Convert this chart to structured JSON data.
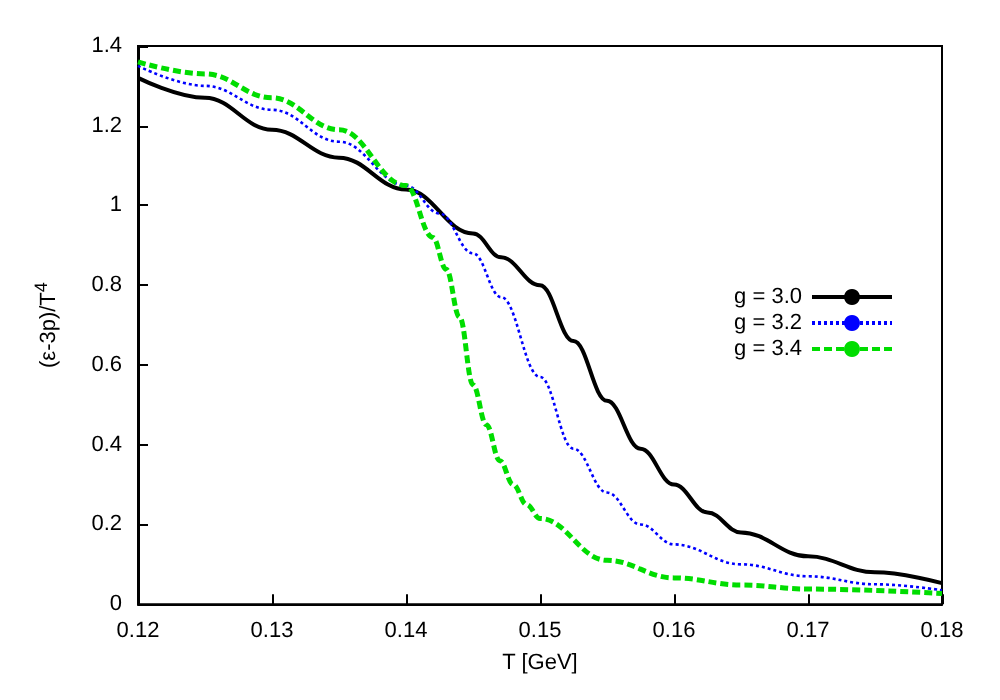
{
  "chart_data": {
    "type": "line",
    "xlabel": "T [GeV]",
    "ylabel": "(ε-3p)/T$^{4}$",
    "xlim": [
      0.12,
      0.18
    ],
    "xticks": [
      0.12,
      0.13,
      0.14,
      0.15,
      0.16,
      0.17,
      0.18
    ],
    "ylim": [
      0,
      1.4
    ],
    "yticks": [
      0,
      0.2,
      0.4,
      0.6,
      0.8,
      1,
      1.2,
      1.4
    ],
    "grid": false,
    "legend": "right",
    "marker": "none",
    "series": [
      {
        "name": "g = 3.0",
        "color": "#000000",
        "line_style": "solid",
        "x": [
          0.12,
          0.125,
          0.13,
          0.135,
          0.14,
          0.145,
          0.1471,
          0.15,
          0.1525,
          0.155,
          0.1575,
          0.16,
          0.1625,
          0.165,
          0.17,
          0.175,
          0.18
        ],
        "values": [
          1.32,
          1.27,
          1.19,
          1.12,
          1.04,
          0.93,
          0.87,
          0.8,
          0.66,
          0.51,
          0.39,
          0.3,
          0.23,
          0.18,
          0.12,
          0.08,
          0.053
        ]
      },
      {
        "name": "g = 3.2",
        "color": "#0000ff",
        "line_style": "dotted",
        "x": [
          0.12,
          0.125,
          0.13,
          0.135,
          0.14,
          0.1425,
          0.145,
          0.1471,
          0.15,
          0.1525,
          0.155,
          0.1575,
          0.16,
          0.165,
          0.17,
          0.175,
          0.18
        ],
        "values": [
          1.35,
          1.3,
          1.24,
          1.16,
          1.05,
          0.98,
          0.88,
          0.77,
          0.57,
          0.39,
          0.28,
          0.2,
          0.15,
          0.1,
          0.07,
          0.05,
          0.035
        ]
      },
      {
        "name": "g = 3.4",
        "color": "#00dd00",
        "line_style": "dashed",
        "x": [
          0.12,
          0.125,
          0.13,
          0.135,
          0.14,
          0.142,
          0.143,
          0.144,
          0.145,
          0.146,
          0.147,
          0.148,
          0.149,
          0.15,
          0.155,
          0.16,
          0.165,
          0.17,
          0.18
        ],
        "values": [
          1.36,
          1.33,
          1.27,
          1.19,
          1.05,
          0.92,
          0.84,
          0.72,
          0.55,
          0.45,
          0.36,
          0.3,
          0.25,
          0.215,
          0.11,
          0.066,
          0.048,
          0.038,
          0.027
        ]
      }
    ]
  }
}
